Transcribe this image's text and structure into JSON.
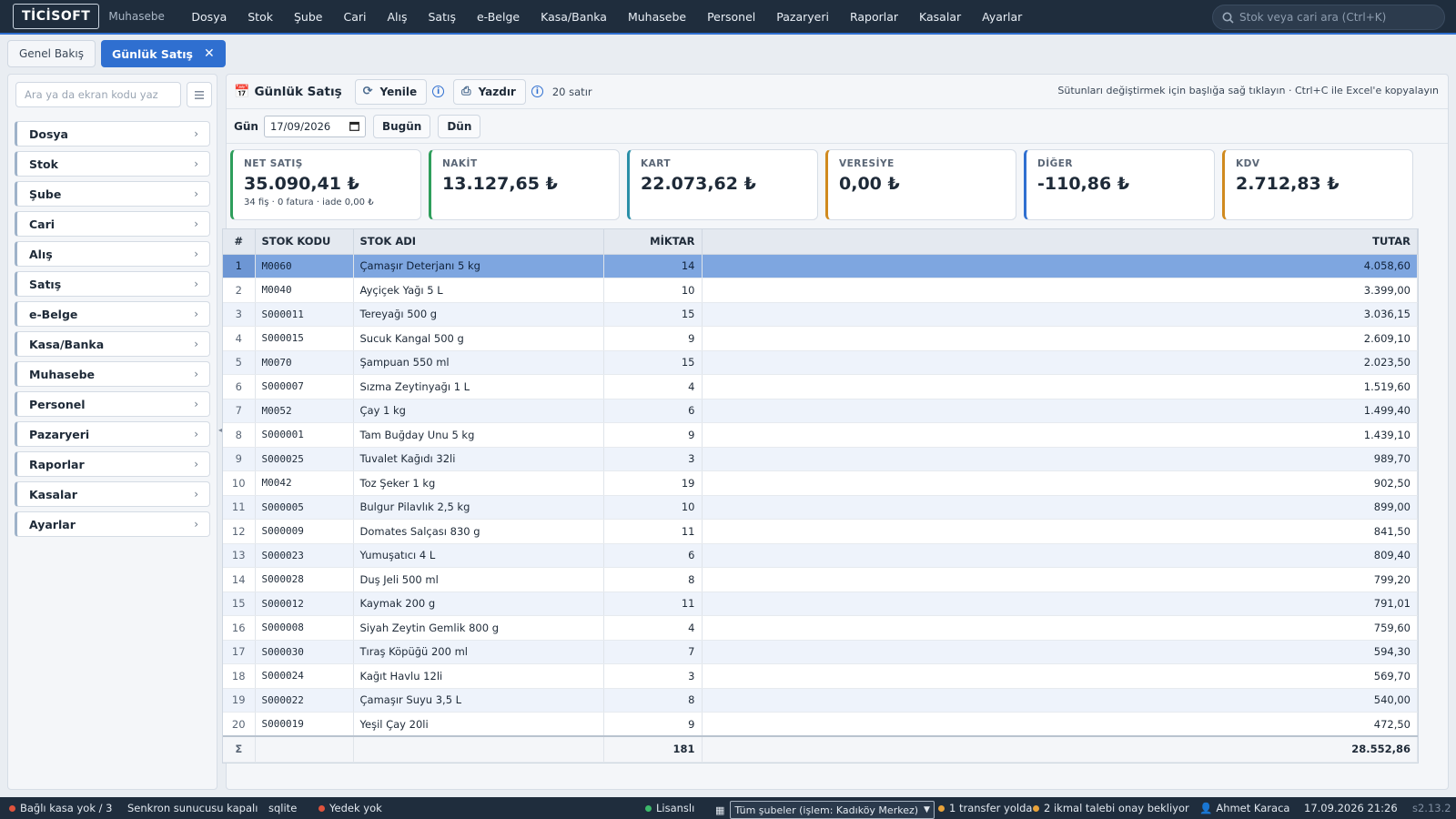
{
  "app": {
    "logo": "TİCİSOFT",
    "subtitle": "Muhasebe"
  },
  "nav": [
    "Dosya",
    "Stok",
    "Şube",
    "Cari",
    "Alış",
    "Satış",
    "e-Belge",
    "Kasa/Banka",
    "Muhasebe",
    "Personel",
    "Pazaryeri",
    "Raporlar",
    "Kasalar",
    "Ayarlar"
  ],
  "search": {
    "placeholder": "Stok veya cari ara (Ctrl+K)",
    "icon": "search-icon"
  },
  "tabs": [
    {
      "label": "Genel Bakış",
      "active": false
    },
    {
      "label": "Günlük Satış",
      "active": true,
      "close": "✕"
    }
  ],
  "sidebar": {
    "search_placeholder": "Ara ya da ekran kodu yaz",
    "menu_icon": "list-icon",
    "items": [
      "Dosya",
      "Stok",
      "Şube",
      "Cari",
      "Alış",
      "Satış",
      "e-Belge",
      "Kasa/Banka",
      "Muhasebe",
      "Personel",
      "Pazaryeri",
      "Raporlar",
      "Kasalar",
      "Ayarlar"
    ]
  },
  "toolbar": {
    "title": "Günlük Satış",
    "title_icon": "calendar-icon",
    "refresh_label": "Yenile",
    "print_label": "Yazdır",
    "row_count": "20 satır",
    "hint": "Sütunları değiştirmek için başlığa sağ tıklayın · Ctrl+C ile Excel'e kopyalayın"
  },
  "filter": {
    "label": "Gün",
    "date": "17/09/2026",
    "today_label": "Bugün",
    "yesterday_label": "Dün"
  },
  "cards": [
    {
      "title": "NET SATIŞ",
      "value": "35.090,41 ₺",
      "sub": "34 fiş · 0 fatura · iade 0,00 ₺",
      "color": "#2e9e5b"
    },
    {
      "title": "NAKİT",
      "value": "13.127,65 ₺",
      "sub": "",
      "color": "#2e9e5b"
    },
    {
      "title": "KART",
      "value": "22.073,62 ₺",
      "sub": "",
      "color": "#2a8fa8"
    },
    {
      "title": "VERESİYE",
      "value": "0,00 ₺",
      "sub": "",
      "color": "#d08a1e"
    },
    {
      "title": "DİĞER",
      "value": "-110,86 ₺",
      "sub": "",
      "color": "#2f6fd0"
    },
    {
      "title": "KDV",
      "value": "2.712,83 ₺",
      "sub": "",
      "color": "#d08a1e"
    }
  ],
  "table": {
    "headers": {
      "idx": "#",
      "code": "STOK KODU",
      "name": "STOK ADI",
      "qty": "MİKTAR",
      "total": "TUTAR"
    },
    "selected_row": 0,
    "rows": [
      {
        "idx": "1",
        "code": "M0060",
        "name": "Çamaşır Deterjanı 5 kg",
        "qty": "14",
        "total": "4.058,60"
      },
      {
        "idx": "2",
        "code": "M0040",
        "name": "Ayçiçek Yağı 5 L",
        "qty": "10",
        "total": "3.399,00"
      },
      {
        "idx": "3",
        "code": "S000011",
        "name": "Tereyağı 500 g",
        "qty": "15",
        "total": "3.036,15"
      },
      {
        "idx": "4",
        "code": "S000015",
        "name": "Sucuk Kangal 500 g",
        "qty": "9",
        "total": "2.609,10"
      },
      {
        "idx": "5",
        "code": "M0070",
        "name": "Şampuan 550 ml",
        "qty": "15",
        "total": "2.023,50"
      },
      {
        "idx": "6",
        "code": "S000007",
        "name": "Sızma Zeytinyağı 1 L",
        "qty": "4",
        "total": "1.519,60"
      },
      {
        "idx": "7",
        "code": "M0052",
        "name": "Çay 1 kg",
        "qty": "6",
        "total": "1.499,40"
      },
      {
        "idx": "8",
        "code": "S000001",
        "name": "Tam Buğday Unu 5 kg",
        "qty": "9",
        "total": "1.439,10"
      },
      {
        "idx": "9",
        "code": "S000025",
        "name": "Tuvalet Kağıdı 32li",
        "qty": "3",
        "total": "989,70"
      },
      {
        "idx": "10",
        "code": "M0042",
        "name": "Toz Şeker 1 kg",
        "qty": "19",
        "total": "902,50"
      },
      {
        "idx": "11",
        "code": "S000005",
        "name": "Bulgur Pilavlık 2,5 kg",
        "qty": "10",
        "total": "899,00"
      },
      {
        "idx": "12",
        "code": "S000009",
        "name": "Domates Salçası 830 g",
        "qty": "11",
        "total": "841,50"
      },
      {
        "idx": "13",
        "code": "S000023",
        "name": "Yumuşatıcı 4 L",
        "qty": "6",
        "total": "809,40"
      },
      {
        "idx": "14",
        "code": "S000028",
        "name": "Duş Jeli 500 ml",
        "qty": "8",
        "total": "799,20"
      },
      {
        "idx": "15",
        "code": "S000012",
        "name": "Kaymak 200 g",
        "qty": "11",
        "total": "791,01"
      },
      {
        "idx": "16",
        "code": "S000008",
        "name": "Siyah Zeytin Gemlik 800 g",
        "qty": "4",
        "total": "759,60"
      },
      {
        "idx": "17",
        "code": "S000030",
        "name": "Tıraş Köpüğü 200 ml",
        "qty": "7",
        "total": "594,30"
      },
      {
        "idx": "18",
        "code": "S000024",
        "name": "Kağıt Havlu 12li",
        "qty": "3",
        "total": "569,70"
      },
      {
        "idx": "19",
        "code": "S000022",
        "name": "Çamaşır Suyu 3,5 L",
        "qty": "8",
        "total": "540,00"
      },
      {
        "idx": "20",
        "code": "S000019",
        "name": "Yeşil Çay 20li",
        "qty": "9",
        "total": "472,50"
      }
    ],
    "footer": {
      "sigma": "Σ",
      "qty": "181",
      "total": "28.552,86"
    }
  },
  "statusbar": {
    "left": [
      {
        "text": "Bağlı kasa yok / 3",
        "dot": "#e0533d"
      },
      {
        "text": "Senkron sunucusu kapalı",
        "dot": ""
      },
      {
        "text": "sqlite",
        "dot": ""
      },
      {
        "text": "Yedek yok",
        "dot": "#e0533d"
      }
    ],
    "license": {
      "text": "Lisanslı",
      "dot": "#3cb96a"
    },
    "branch_select": "Tüm şubeler (işlem: Kadıköy Merkez)",
    "transfers": {
      "text": "1 transfer yolda",
      "dot": "#e8a23a"
    },
    "approvals": {
      "text": "2 ikmal talebi onay bekliyor",
      "dot": "#e8a23a"
    },
    "user": "Ahmet Karaca",
    "datetime": "17.09.2026 21:26",
    "version": "s2.13.2"
  }
}
